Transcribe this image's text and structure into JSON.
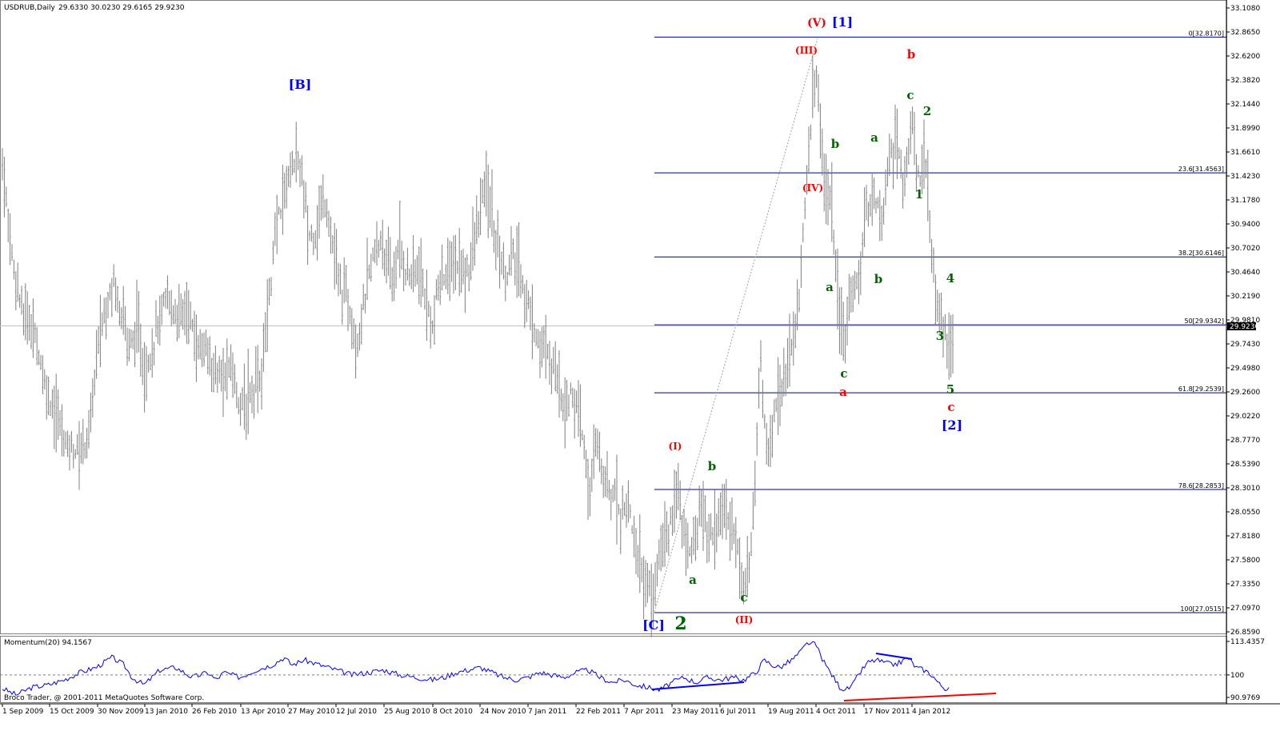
{
  "header": {
    "symbol": "USDRUB,Daily",
    "ohlc": "29.6330 30.0230 29.6165 29.9230"
  },
  "indicator_header": {
    "label": "Momentum(20) 94.1567"
  },
  "footer": {
    "text": "Broco Trader, @ 2001-2011 MetaQuotes Software Corp."
  },
  "chart_data": [
    {
      "type": "ohlc",
      "title": "USDRUB,Daily",
      "ylim": [
        26.859,
        33.108
      ],
      "y_ticks": [
        "33.1080",
        "32.8650",
        "32.6200",
        "32.3820",
        "32.1440",
        "31.8990",
        "31.6610",
        "31.4230",
        "31.1780",
        "30.9400",
        "30.7020",
        "30.4640",
        "30.2190",
        "29.9810",
        "29.7430",
        "29.4980",
        "29.2600",
        "29.0220",
        "28.7770",
        "28.5390",
        "28.3010",
        "28.0550",
        "27.8180",
        "27.5800",
        "27.3350",
        "27.0970",
        "26.8590"
      ],
      "x_ticks": [
        "1 Sep 2009",
        "15 Oct 2009",
        "30 Nov 2009",
        "13 Jan 2010",
        "26 Feb 2010",
        "13 Apr 2010",
        "27 May 2010",
        "12 Jul 2010",
        "25 Aug 2010",
        "8 Oct 2010",
        "24 Nov 2010",
        "7 Jan 2011",
        "22 Feb 2011",
        "7 Apr 2011",
        "23 May 2011",
        "6 Jul 2011",
        "19 Aug 2011",
        "4 Oct 2011",
        "17 Nov 2011",
        "4 Jan 2012"
      ],
      "current_price": "29.9230",
      "price_path": [
        [
          0,
          31.95
        ],
        [
          8,
          31.2
        ],
        [
          16,
          30.6
        ],
        [
          28,
          30.1
        ],
        [
          42,
          29.95
        ],
        [
          56,
          29.4
        ],
        [
          70,
          29.05
        ],
        [
          82,
          28.8
        ],
        [
          96,
          28.7
        ],
        [
          104,
          28.75
        ],
        [
          112,
          28.95
        ],
        [
          122,
          29.75
        ],
        [
          132,
          30.15
        ],
        [
          142,
          30.45
        ],
        [
          152,
          30.15
        ],
        [
          162,
          29.75
        ],
        [
          172,
          29.95
        ],
        [
          182,
          29.5
        ],
        [
          190,
          29.75
        ],
        [
          200,
          30.05
        ],
        [
          210,
          30.25
        ],
        [
          220,
          30.1
        ],
        [
          232,
          30.1
        ],
        [
          244,
          29.85
        ],
        [
          256,
          29.7
        ],
        [
          266,
          29.55
        ],
        [
          278,
          29.4
        ],
        [
          290,
          29.55
        ],
        [
          302,
          29.1
        ],
        [
          314,
          29.35
        ],
        [
          326,
          29.45
        ],
        [
          336,
          30.25
        ],
        [
          346,
          30.95
        ],
        [
          356,
          31.35
        ],
        [
          366,
          31.65
        ],
        [
          376,
          31.55
        ],
        [
          386,
          30.85
        ],
        [
          396,
          30.95
        ],
        [
          406,
          31.25
        ],
        [
          416,
          30.75
        ],
        [
          426,
          30.35
        ],
        [
          436,
          30.25
        ],
        [
          446,
          29.75
        ],
        [
          456,
          30.25
        ],
        [
          466,
          30.65
        ],
        [
          478,
          30.85
        ],
        [
          490,
          30.45
        ],
        [
          500,
          30.75
        ],
        [
          510,
          30.45
        ],
        [
          520,
          30.55
        ],
        [
          530,
          30.35
        ],
        [
          540,
          29.9
        ],
        [
          550,
          30.45
        ],
        [
          560,
          30.5
        ],
        [
          572,
          30.6
        ],
        [
          582,
          30.45
        ],
        [
          594,
          30.85
        ],
        [
          606,
          31.35
        ],
        [
          614,
          31.15
        ],
        [
          622,
          30.75
        ],
        [
          632,
          30.45
        ],
        [
          642,
          30.65
        ],
        [
          652,
          30.45
        ],
        [
          662,
          30.1
        ],
        [
          672,
          29.85
        ],
        [
          684,
          29.65
        ],
        [
          694,
          29.55
        ],
        [
          706,
          29.2
        ],
        [
          716,
          29.25
        ],
        [
          726,
          28.95
        ],
        [
          736,
          28.35
        ],
        [
          746,
          28.75
        ],
        [
          756,
          28.45
        ],
        [
          766,
          28.3
        ],
        [
          776,
          28.1
        ],
        [
          786,
          28.15
        ],
        [
          796,
          27.75
        ],
        [
          806,
          27.45
        ],
        [
          816,
          27.2
        ],
        [
          826,
          27.8
        ],
        [
          836,
          27.9
        ],
        [
          846,
          28.35
        ],
        [
          856,
          27.85
        ],
        [
          866,
          27.75
        ],
        [
          876,
          28.15
        ],
        [
          886,
          27.9
        ],
        [
          896,
          27.95
        ],
        [
          906,
          28.15
        ],
        [
          916,
          27.95
        ],
        [
          926,
          27.6
        ],
        [
          932,
          27.35
        ],
        [
          940,
          27.8
        ],
        [
          950,
          29.6
        ],
        [
          960,
          28.65
        ],
        [
          970,
          29.25
        ],
        [
          980,
          29.45
        ],
        [
          990,
          29.75
        ],
        [
          1000,
          30.35
        ],
        [
          1010,
          31.6
        ],
        [
          1016,
          32.3
        ],
        [
          1022,
          32.45
        ],
        [
          1030,
          31.4
        ],
        [
          1040,
          31.15
        ],
        [
          1048,
          30.15
        ],
        [
          1056,
          29.7
        ],
        [
          1064,
          30.45
        ],
        [
          1072,
          30.35
        ],
        [
          1082,
          31.05
        ],
        [
          1092,
          31.35
        ],
        [
          1102,
          31.0
        ],
        [
          1112,
          31.65
        ],
        [
          1122,
          31.85
        ],
        [
          1130,
          31.35
        ],
        [
          1140,
          32.05
        ],
        [
          1148,
          31.45
        ],
        [
          1156,
          31.65
        ],
        [
          1164,
          30.75
        ],
        [
          1174,
          30.15
        ],
        [
          1182,
          29.85
        ],
        [
          1190,
          29.75
        ]
      ]
    },
    {
      "type": "line",
      "title": "Momentum(20) 94.1567",
      "ylim": [
        90.9769,
        113.4357
      ],
      "y_ticks": [
        "113.4357",
        "100",
        "90.9769"
      ],
      "reference_level": 100,
      "values": [
        [
          0,
          95
        ],
        [
          20,
          92
        ],
        [
          40,
          95
        ],
        [
          60,
          96
        ],
        [
          80,
          98
        ],
        [
          100,
          101
        ],
        [
          120,
          103
        ],
        [
          140,
          107
        ],
        [
          155,
          104
        ],
        [
          165,
          99
        ],
        [
          180,
          96
        ],
        [
          190,
          99
        ],
        [
          200,
          102
        ],
        [
          220,
          103
        ],
        [
          240,
          99
        ],
        [
          260,
          101
        ],
        [
          270,
          98
        ],
        [
          280,
          101
        ],
        [
          300,
          99
        ],
        [
          320,
          102
        ],
        [
          340,
          104
        ],
        [
          355,
          107
        ],
        [
          365,
          104
        ],
        [
          380,
          106
        ],
        [
          400,
          104
        ],
        [
          420,
          102
        ],
        [
          440,
          100
        ],
        [
          460,
          101
        ],
        [
          480,
          102
        ],
        [
          500,
          100
        ],
        [
          520,
          99
        ],
        [
          540,
          98
        ],
        [
          555,
          99
        ],
        [
          570,
          101
        ],
        [
          585,
          102
        ],
        [
          600,
          103
        ],
        [
          615,
          101
        ],
        [
          630,
          99
        ],
        [
          645,
          98
        ],
        [
          660,
          99
        ],
        [
          675,
          101
        ],
        [
          690,
          100
        ],
        [
          705,
          99
        ],
        [
          720,
          101
        ],
        [
          735,
          102
        ],
        [
          750,
          99
        ],
        [
          765,
          97
        ],
        [
          780,
          98
        ],
        [
          795,
          96
        ],
        [
          810,
          95
        ],
        [
          825,
          94
        ],
        [
          840,
          97
        ],
        [
          855,
          99
        ],
        [
          870,
          97
        ],
        [
          885,
          99
        ],
        [
          900,
          98
        ],
        [
          915,
          99
        ],
        [
          930,
          98
        ],
        [
          945,
          101
        ],
        [
          955,
          106
        ],
        [
          965,
          104
        ],
        [
          975,
          103
        ],
        [
          990,
          106
        ],
        [
          1000,
          109
        ],
        [
          1010,
          113
        ],
        [
          1020,
          112
        ],
        [
          1030,
          105
        ],
        [
          1040,
          100
        ],
        [
          1050,
          95
        ],
        [
          1058,
          94
        ],
        [
          1066,
          96
        ],
        [
          1075,
          101
        ],
        [
          1085,
          105
        ],
        [
          1095,
          106
        ],
        [
          1105,
          105
        ],
        [
          1115,
          104
        ],
        [
          1125,
          105
        ],
        [
          1135,
          107
        ],
        [
          1145,
          103
        ],
        [
          1155,
          102
        ],
        [
          1165,
          100
        ],
        [
          1175,
          96
        ],
        [
          1185,
          94
        ]
      ]
    }
  ],
  "fib_levels": [
    {
      "label": "0[32.8170]",
      "value": 32.817
    },
    {
      "label": "23.6[31.4563]",
      "value": 31.4563
    },
    {
      "label": "38.2[30.6146]",
      "value": 30.6146
    },
    {
      "label": "50[29.9342]",
      "value": 29.9342
    },
    {
      "label": "61.8[29.2539]",
      "value": 29.2539
    },
    {
      "label": "78.6[28.2853]",
      "value": 28.2853
    },
    {
      "label": "100[27.0515]",
      "value": 27.0515
    }
  ],
  "wave_labels": [
    {
      "text": "[B]",
      "color": "#0000ff",
      "size": 16
    },
    {
      "text": "(V)",
      "color": "#ff0000",
      "size": 14
    },
    {
      "text": "[1]",
      "color": "#0000ff",
      "size": 16
    },
    {
      "text": "(III)",
      "color": "#ff0000",
      "size": 12
    },
    {
      "text": "b",
      "color": "#ff0000",
      "size": 15
    },
    {
      "text": "c",
      "color": "#006400",
      "size": 15
    },
    {
      "text": "2",
      "color": "#006400",
      "size": 15
    },
    {
      "text": "b",
      "color": "#006400",
      "size": 15
    },
    {
      "text": "a",
      "color": "#006400",
      "size": 15
    },
    {
      "text": "(IV)",
      "color": "#ff0000",
      "size": 12
    },
    {
      "text": "1",
      "color": "#006400",
      "size": 15
    },
    {
      "text": "a",
      "color": "#006400",
      "size": 15
    },
    {
      "text": "b",
      "color": "#006400",
      "size": 15
    },
    {
      "text": "4",
      "color": "#006400",
      "size": 15
    },
    {
      "text": "3",
      "color": "#006400",
      "size": 15
    },
    {
      "text": "c",
      "color": "#006400",
      "size": 15
    },
    {
      "text": "a",
      "color": "#ff0000",
      "size": 15
    },
    {
      "text": "5",
      "color": "#006400",
      "size": 15
    },
    {
      "text": "c",
      "color": "#ff0000",
      "size": 15
    },
    {
      "text": "[2]",
      "color": "#0000ff",
      "size": 16
    },
    {
      "text": "(I)",
      "color": "#ff0000",
      "size": 12
    },
    {
      "text": "b",
      "color": "#006400",
      "size": 15
    },
    {
      "text": "a",
      "color": "#006400",
      "size": 15
    },
    {
      "text": "c",
      "color": "#006400",
      "size": 15
    },
    {
      "text": "(II)",
      "color": "#ff0000",
      "size": 12
    },
    {
      "text": "[C]",
      "color": "#0000ff",
      "size": 16
    },
    {
      "text": "2",
      "color": "#006400",
      "size": 22
    }
  ],
  "colors": {
    "bars": "#808080",
    "momentum": "#0000ff",
    "fib": "#000080",
    "trend_blue": "#0000ff",
    "trend_red": "#ff0000"
  }
}
